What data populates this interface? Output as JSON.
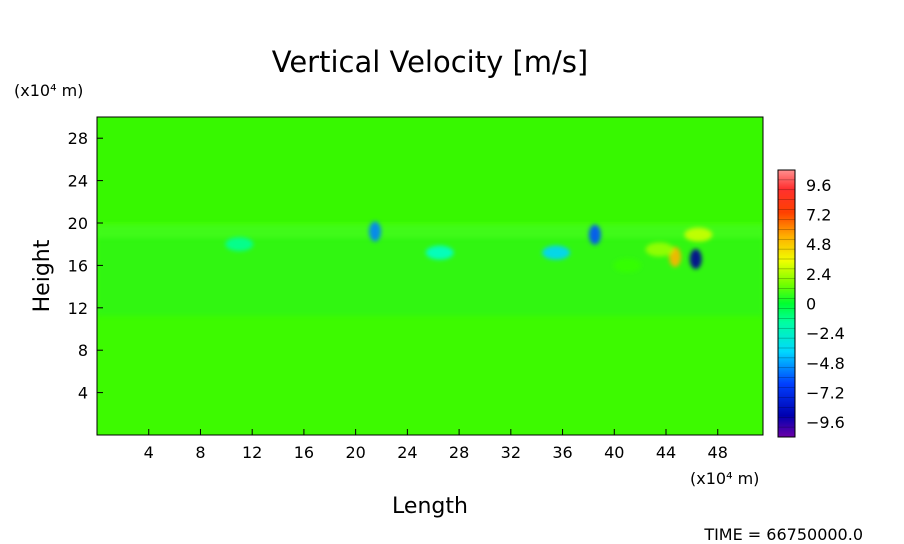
{
  "chart_data": {
    "type": "heatmap",
    "title": "Vertical Velocity [m/s]",
    "xlabel": "Length",
    "ylabel": "Height",
    "x_unit": "(x10⁴ m)",
    "y_unit": "(x10⁴ m)",
    "xlim": [
      0,
      51.5
    ],
    "ylim": [
      0,
      30
    ],
    "x_ticks": [
      "4",
      "8",
      "12",
      "16",
      "20",
      "24",
      "28",
      "32",
      "36",
      "40",
      "44",
      "48"
    ],
    "y_ticks": [
      "4",
      "8",
      "12",
      "16",
      "20",
      "24",
      "28"
    ],
    "colorbar": {
      "min": -10.8,
      "max": 10.8,
      "ticks": [
        "9.6",
        "7.2",
        "4.8",
        "2.4",
        "0",
        "−2.4",
        "−4.8",
        "−7.2",
        "−9.6"
      ],
      "tick_values": [
        9.6,
        7.2,
        4.8,
        2.4,
        0,
        -2.4,
        -4.8,
        -7.2,
        -9.6
      ],
      "colors": [
        "#ff8080",
        "#ff5050",
        "#ff2020",
        "#ff5000",
        "#ff8c00",
        "#ffb400",
        "#ffd700",
        "#ffff00",
        "#ccff00",
        "#99ff00",
        "#66ff00",
        "#33ff00",
        "#00ff00",
        "#00ff33",
        "#00ff66",
        "#00ff99",
        "#00ffcc",
        "#00ffff",
        "#00d4ff",
        "#00aaff",
        "#0080ff",
        "#0050ff",
        "#0020ff",
        "#0000cc",
        "#000099",
        "#5000a0",
        "#8000a0"
      ]
    },
    "features": [
      {
        "x": 46.3,
        "y": 16.6,
        "value": -9.5
      },
      {
        "x": 44.7,
        "y": 16.8,
        "value": 7.0
      },
      {
        "x": 46.5,
        "y": 18.9,
        "value": 4.5
      },
      {
        "x": 43.5,
        "y": 17.5,
        "value": 3.0
      },
      {
        "x": 38.5,
        "y": 18.9,
        "value": -6.5
      },
      {
        "x": 35.5,
        "y": 17.2,
        "value": -4.5
      },
      {
        "x": 26.5,
        "y": 17.2,
        "value": -2.5
      },
      {
        "x": 21.5,
        "y": 19.2,
        "value": -6.0
      },
      {
        "x": 11.0,
        "y": 18.0,
        "value": -2.0
      },
      {
        "x": 41.0,
        "y": 16.0,
        "value": 2.0
      }
    ]
  },
  "footer": {
    "time_label": "TIME = 66750000.0"
  }
}
